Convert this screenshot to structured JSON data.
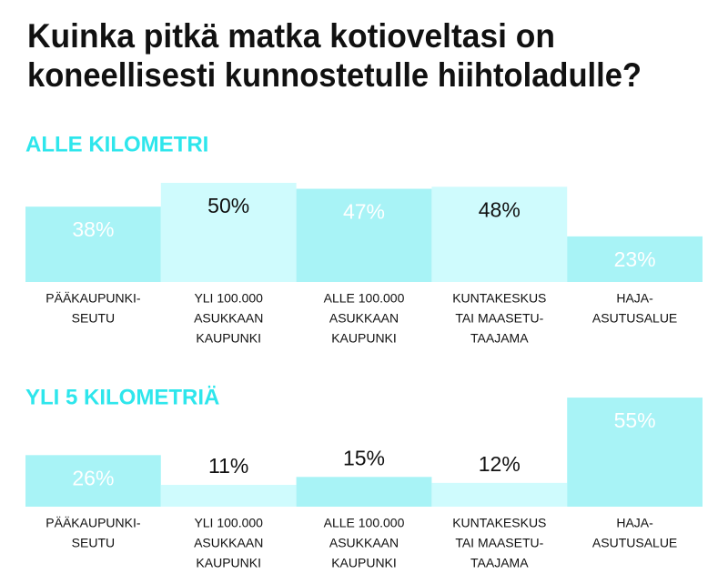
{
  "title": [
    "Kuinka pitkä matka kotioveltasi on",
    "koneellisesti kunnostetulle hiihtoladulle?"
  ],
  "chart_data": [
    {
      "type": "bar",
      "subtitle": "ALLE KILOMETRI",
      "categories": [
        [
          "PÄÄKAUPUNKI-",
          "SEUTU"
        ],
        [
          "YLI 100.000",
          "ASUKKAAN",
          "KAUPUNKI"
        ],
        [
          "ALLE 100.000",
          "ASUKKAAN",
          "KAUPUNKI"
        ],
        [
          "KUNTAKESKUS",
          "TAI MAASETU-",
          "TAAJAMA"
        ],
        [
          "HAJA-",
          "ASUTUSALUE"
        ]
      ],
      "values": [
        38,
        50,
        47,
        48,
        23
      ],
      "value_labels": [
        "38%",
        "50%",
        "47%",
        "48%",
        "23%"
      ],
      "colors": [
        "#a8f3f6",
        "#cffbfd",
        "#a8f3f6",
        "#cffbfd",
        "#a8f3f6"
      ]
    },
    {
      "type": "bar",
      "subtitle": "YLI 5 KILOMETRIÄ",
      "categories": [
        [
          "PÄÄKAUPUNKI-",
          "SEUTU"
        ],
        [
          "YLI 100.000",
          "ASUKKAAN",
          "KAUPUNKI"
        ],
        [
          "ALLE 100.000",
          "ASUKKAAN",
          "KAUPUNKI"
        ],
        [
          "KUNTAKESKUS",
          "TAI MAASETU-",
          "TAAJAMA"
        ],
        [
          "HAJA-",
          "ASUTUSALUE"
        ]
      ],
      "values": [
        26,
        11,
        15,
        12,
        55
      ],
      "value_labels": [
        "26%",
        "11%",
        "15%",
        "12%",
        "55%"
      ],
      "colors": [
        "#a8f3f6",
        "#cffbfd",
        "#a8f3f6",
        "#cffbfd",
        "#a8f3f6"
      ]
    }
  ]
}
